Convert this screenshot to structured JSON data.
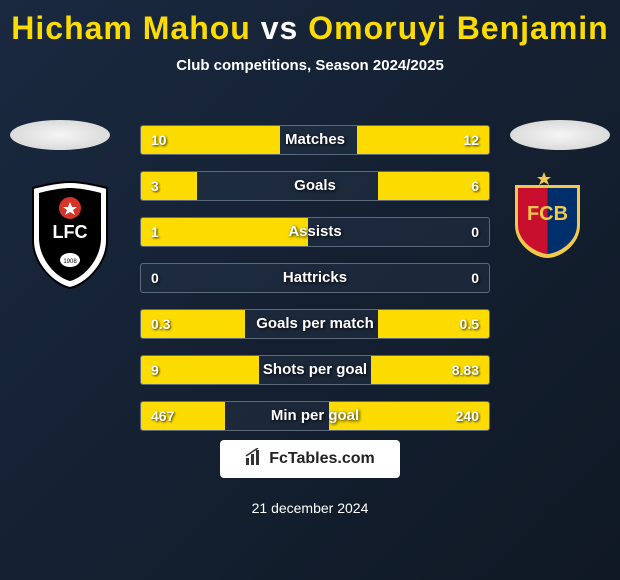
{
  "title": {
    "player1": "Hicham Mahou",
    "vs": "vs",
    "player2": "Omoruyi Benjamin"
  },
  "subtitle": "Club competitions, Season 2024/2025",
  "colors": {
    "accent": "#fcdc00",
    "text": "#ffffff",
    "bg_start": "#1a2940",
    "bg_end": "#0f1824",
    "border": "#5a6a7a"
  },
  "clubs": {
    "left": {
      "name": "FC Lugano",
      "primary": "#000000",
      "secondary": "#ffffff",
      "accent": "#d4342a"
    },
    "right": {
      "name": "FC Basel",
      "primary": "#c8102e",
      "secondary": "#002f6c",
      "gold": "#f2c94c"
    }
  },
  "stats": [
    {
      "label": "Matches",
      "left_val": "10",
      "right_val": "12",
      "left_pct": 40,
      "right_pct": 38
    },
    {
      "label": "Goals",
      "left_val": "3",
      "right_val": "6",
      "left_pct": 16,
      "right_pct": 32
    },
    {
      "label": "Assists",
      "left_val": "1",
      "right_val": "0",
      "left_pct": 48,
      "right_pct": 0
    },
    {
      "label": "Hattricks",
      "left_val": "0",
      "right_val": "0",
      "left_pct": 0,
      "right_pct": 0
    },
    {
      "label": "Goals per match",
      "left_val": "0.3",
      "right_val": "0.5",
      "left_pct": 30,
      "right_pct": 32
    },
    {
      "label": "Shots per goal",
      "left_val": "9",
      "right_val": "8.83",
      "left_pct": 34,
      "right_pct": 34
    },
    {
      "label": "Min per goal",
      "left_val": "467",
      "right_val": "240",
      "left_pct": 24,
      "right_pct": 46
    }
  ],
  "branding": {
    "site": "FcTables.com"
  },
  "date": "21 december 2024"
}
